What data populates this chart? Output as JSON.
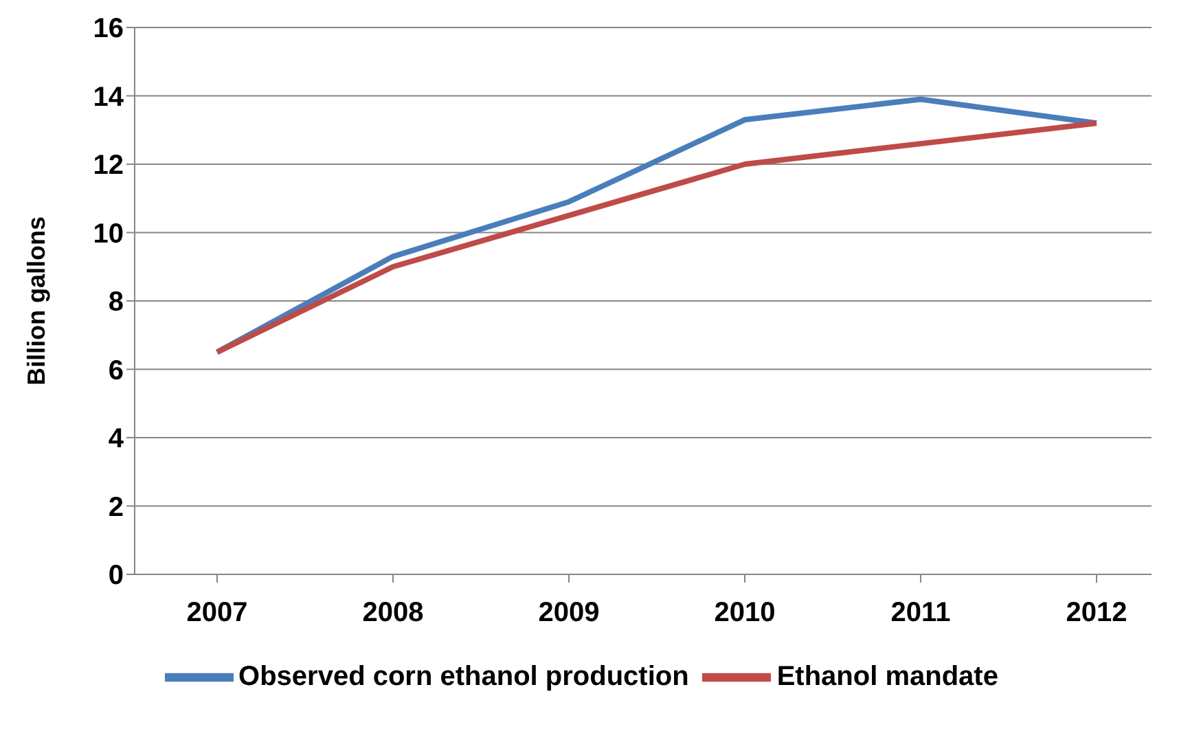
{
  "chart_data": {
    "type": "line",
    "ylabel": "Billion gallons",
    "categories": [
      "2007",
      "2008",
      "2009",
      "2010",
      "2011",
      "2012"
    ],
    "series": [
      {
        "name": "Observed corn ethanol production",
        "color": "#4a7ebb",
        "values": [
          6.5,
          9.3,
          10.9,
          13.3,
          13.9,
          13.2
        ]
      },
      {
        "name": "Ethanol mandate",
        "color": "#be4b48",
        "values": [
          6.5,
          9.0,
          10.5,
          12.0,
          12.6,
          13.2
        ]
      }
    ],
    "ylim": [
      0,
      16
    ],
    "yticks": [
      0,
      2,
      4,
      6,
      8,
      10,
      12,
      14,
      16
    ],
    "grid": "y",
    "legend": "bottom",
    "marker": "none",
    "line_style": "solid"
  }
}
